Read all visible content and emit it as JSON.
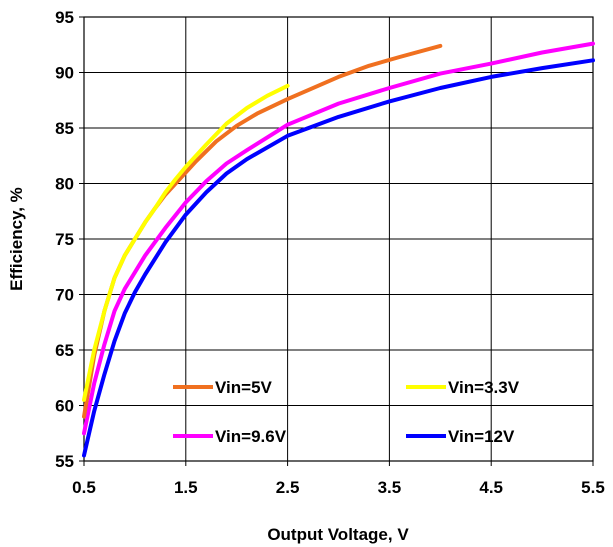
{
  "chart_data": {
    "type": "line",
    "title": "",
    "xlabel": "Output Voltage, V",
    "ylabel": "Efficiency, %",
    "xlim": [
      0.5,
      5.5
    ],
    "ylim": [
      55,
      95
    ],
    "xticks": [
      "0.5",
      "1.5",
      "2.5",
      "3.5",
      "4.5",
      "5.5"
    ],
    "yticks": [
      "55",
      "60",
      "65",
      "70",
      "75",
      "80",
      "85",
      "90",
      "95"
    ],
    "grid": true,
    "legend_position": "inside-bottom",
    "series": [
      {
        "name": "Vin=5V",
        "color": "#f07020",
        "x": [
          0.5,
          0.6,
          0.7,
          0.8,
          0.9,
          1.0,
          1.1,
          1.2,
          1.3,
          1.4,
          1.5,
          1.6,
          1.8,
          2.0,
          2.2,
          2.5,
          2.8,
          3.0,
          3.3,
          3.6,
          4.0
        ],
        "y": [
          59.0,
          64.5,
          68.5,
          71.5,
          73.5,
          75.0,
          76.5,
          77.8,
          79.0,
          80.0,
          81.0,
          82.0,
          83.8,
          85.2,
          86.3,
          87.6,
          88.8,
          89.6,
          90.6,
          91.4,
          92.4
        ]
      },
      {
        "name": "Vin=3.3V",
        "color": "#ffff00",
        "x": [
          0.5,
          0.6,
          0.7,
          0.8,
          0.9,
          1.0,
          1.1,
          1.2,
          1.3,
          1.4,
          1.5,
          1.7,
          1.9,
          2.1,
          2.3,
          2.5
        ],
        "y": [
          60.5,
          65.0,
          68.5,
          71.5,
          73.5,
          75.0,
          76.5,
          77.8,
          79.2,
          80.4,
          81.5,
          83.5,
          85.4,
          86.8,
          87.9,
          88.8
        ]
      },
      {
        "name": "Vin=9.6V",
        "color": "#ff00ff",
        "x": [
          0.5,
          0.6,
          0.7,
          0.8,
          0.9,
          1.0,
          1.1,
          1.3,
          1.5,
          1.7,
          1.9,
          2.1,
          2.5,
          3.0,
          3.5,
          4.0,
          4.5,
          5.0,
          5.5
        ],
        "y": [
          57.5,
          62.0,
          65.5,
          68.5,
          70.5,
          72.0,
          73.5,
          76.0,
          78.3,
          80.2,
          81.8,
          83.0,
          85.3,
          87.2,
          88.6,
          89.9,
          90.8,
          91.8,
          92.6
        ]
      },
      {
        "name": "Vin=12V",
        "color": "#0000ff",
        "x": [
          0.5,
          0.6,
          0.7,
          0.8,
          0.9,
          1.0,
          1.1,
          1.3,
          1.5,
          1.7,
          1.9,
          2.1,
          2.5,
          3.0,
          3.5,
          4.0,
          4.5,
          5.0,
          5.5
        ],
        "y": [
          55.5,
          59.5,
          62.8,
          65.8,
          68.3,
          70.2,
          71.8,
          74.7,
          77.2,
          79.2,
          80.9,
          82.2,
          84.3,
          86.0,
          87.4,
          88.6,
          89.6,
          90.4,
          91.1
        ]
      }
    ]
  }
}
